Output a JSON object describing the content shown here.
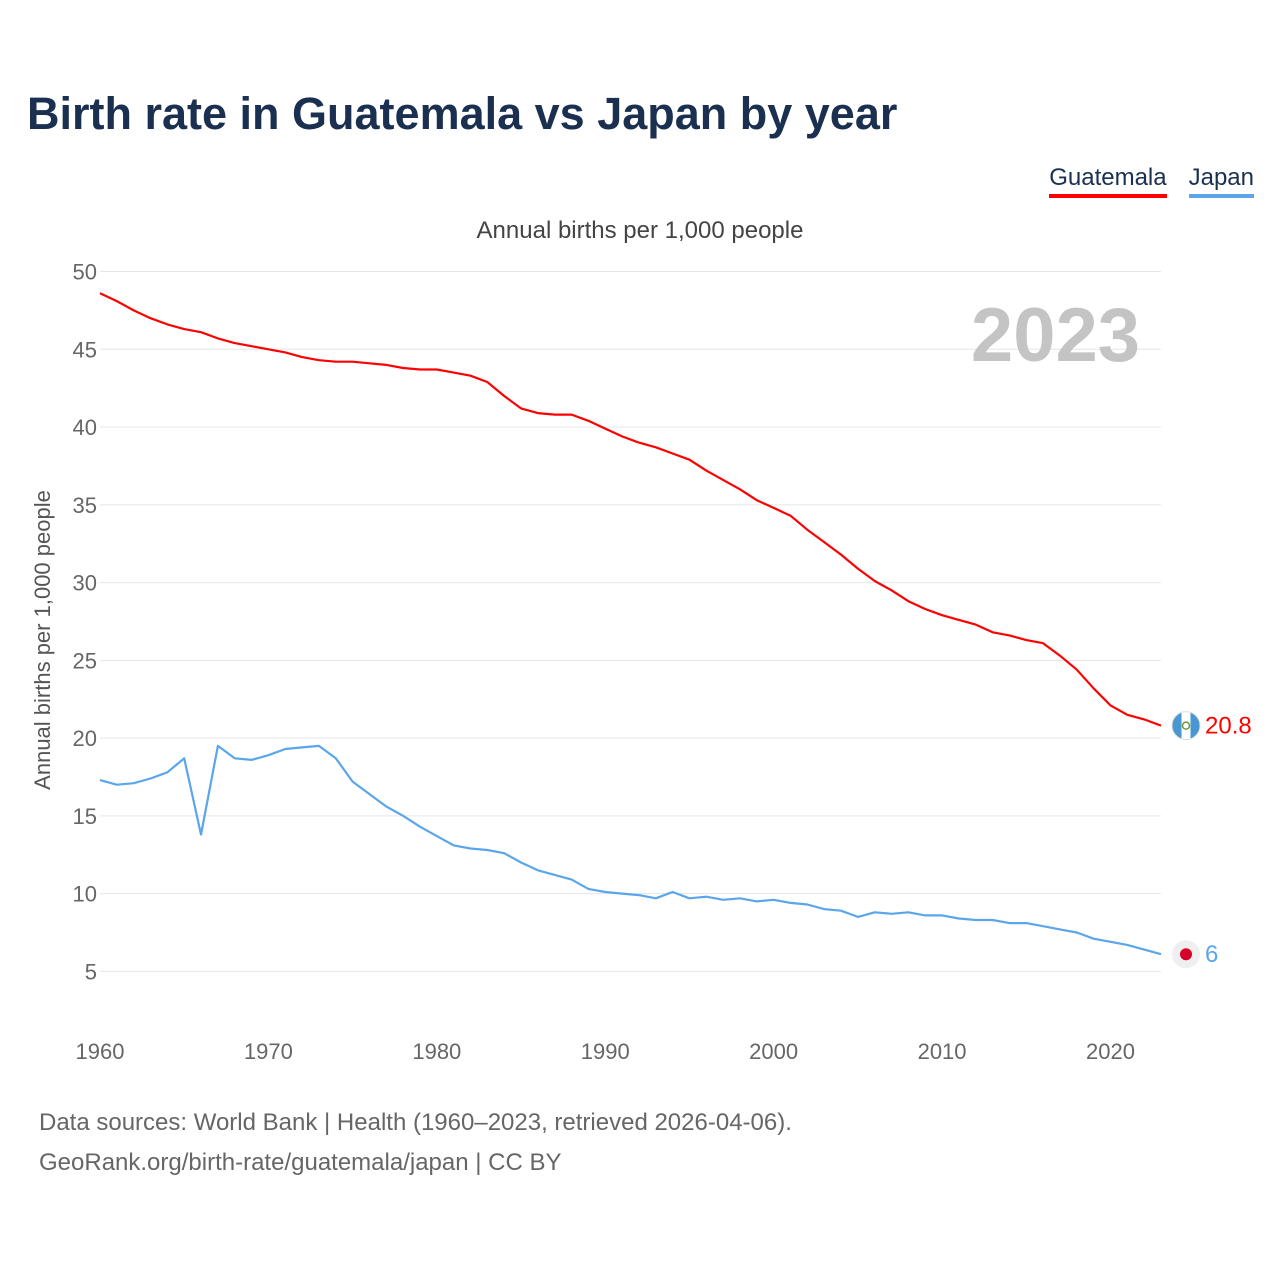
{
  "title": "Birth rate in Guatemala vs Japan by year",
  "legend": {
    "guatemala": "Guatemala",
    "japan": "Japan"
  },
  "footer": {
    "sources": "Data sources: World Bank | Health (1960–2023, retrieved 2026-04-06).",
    "credit": "GeoRank.org/birth-rate/guatemala/japan | CC BY"
  },
  "colors": {
    "guatemala": "#ff0000",
    "japan": "#5ba6ea",
    "title": "#1b3050",
    "grid": "#e6e6e6",
    "year_watermark": "#c4c4c4"
  },
  "chart_data": {
    "type": "line",
    "title": "Birth rate in Guatemala vs Japan by year",
    "subtitle": "Annual births per 1,000 people",
    "ylabel": "Annual births per 1,000 people",
    "xlabel": "",
    "year_label": "2023",
    "grid": true,
    "legend_position": "top-right",
    "xlim": [
      1960,
      2023
    ],
    "ylim": [
      2,
      51
    ],
    "x_ticks": [
      1960,
      1970,
      1980,
      1990,
      2000,
      2010,
      2020
    ],
    "y_ticks": [
      5,
      10,
      15,
      20,
      25,
      30,
      35,
      40,
      45,
      50
    ],
    "x": [
      1960,
      1961,
      1962,
      1963,
      1964,
      1965,
      1966,
      1967,
      1968,
      1969,
      1970,
      1971,
      1972,
      1973,
      1974,
      1975,
      1976,
      1977,
      1978,
      1979,
      1980,
      1981,
      1982,
      1983,
      1984,
      1985,
      1986,
      1987,
      1988,
      1989,
      1990,
      1991,
      1992,
      1993,
      1994,
      1995,
      1996,
      1997,
      1998,
      1999,
      2000,
      2001,
      2002,
      2003,
      2004,
      2005,
      2006,
      2007,
      2008,
      2009,
      2010,
      2011,
      2012,
      2013,
      2014,
      2015,
      2016,
      2017,
      2018,
      2019,
      2020,
      2021,
      2022,
      2023
    ],
    "series": [
      {
        "name": "Guatemala",
        "color": "#ff0000",
        "end_label": "20.8",
        "flag": "guatemala-flag",
        "values": [
          48.6,
          48.1,
          47.5,
          47.0,
          46.6,
          46.3,
          46.1,
          45.7,
          45.4,
          45.2,
          45.0,
          44.8,
          44.5,
          44.3,
          44.2,
          44.2,
          44.1,
          44.0,
          43.8,
          43.7,
          43.7,
          43.5,
          43.3,
          42.9,
          42.0,
          41.2,
          40.9,
          40.8,
          40.8,
          40.4,
          39.9,
          39.4,
          39.0,
          38.7,
          38.3,
          37.9,
          37.2,
          36.6,
          36.0,
          35.3,
          34.8,
          34.3,
          33.4,
          32.6,
          31.8,
          30.9,
          30.1,
          29.5,
          28.8,
          28.3,
          27.9,
          27.6,
          27.3,
          26.8,
          26.6,
          26.3,
          26.1,
          25.3,
          24.4,
          23.2,
          22.1,
          21.5,
          21.2,
          20.8
        ]
      },
      {
        "name": "Japan",
        "color": "#5ba6ea",
        "end_label": "6",
        "flag": "japan-flag",
        "values": [
          17.3,
          17.0,
          17.1,
          17.4,
          17.8,
          18.7,
          13.8,
          19.5,
          18.7,
          18.6,
          18.9,
          19.3,
          19.4,
          19.5,
          18.7,
          17.2,
          16.4,
          15.6,
          15.0,
          14.3,
          13.7,
          13.1,
          12.9,
          12.8,
          12.6,
          12.0,
          11.5,
          11.2,
          10.9,
          10.3,
          10.1,
          10.0,
          9.9,
          9.7,
          10.1,
          9.7,
          9.8,
          9.6,
          9.7,
          9.5,
          9.6,
          9.4,
          9.3,
          9.0,
          8.9,
          8.5,
          8.8,
          8.7,
          8.8,
          8.6,
          8.6,
          8.4,
          8.3,
          8.3,
          8.1,
          8.1,
          7.9,
          7.7,
          7.5,
          7.1,
          6.9,
          6.7,
          6.4,
          6.1
        ]
      }
    ]
  }
}
